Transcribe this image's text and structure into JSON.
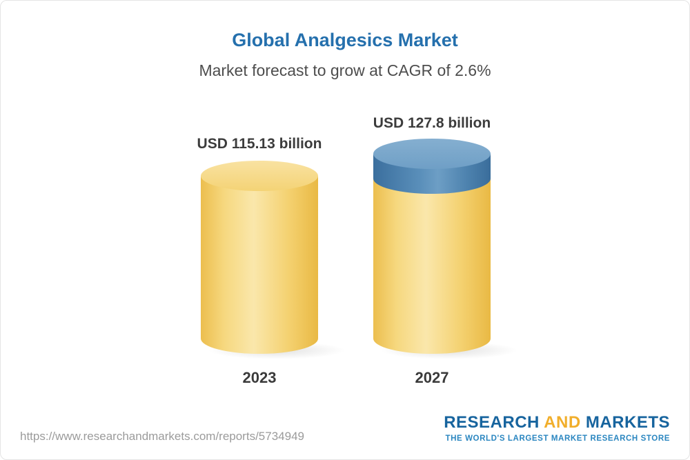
{
  "chart_data": {
    "type": "bar",
    "title": "Global Analgesics Market",
    "subtitle": "Market forecast to grow at CAGR of 2.6%",
    "categories": [
      "2023",
      "2027"
    ],
    "values": [
      115.13,
      127.8
    ],
    "value_labels": [
      "USD 115.13 billion",
      "USD 127.8 billion"
    ],
    "unit": "USD billion",
    "cagr": "2.6%",
    "ylim": [
      0,
      140
    ],
    "legend": "none",
    "grid": "off",
    "colors": {
      "bar_base": "#F3CF6C",
      "bar_growth_cap": "#4F81AC",
      "title": "#2570AD"
    }
  },
  "footer": {
    "url": "https://www.researchandmarkets.com/reports/5734949",
    "logo": {
      "research": "RESEARCH",
      "and": "AND",
      "markets": "MARKETS",
      "tagline": "THE WORLD'S LARGEST MARKET RESEARCH STORE"
    }
  }
}
